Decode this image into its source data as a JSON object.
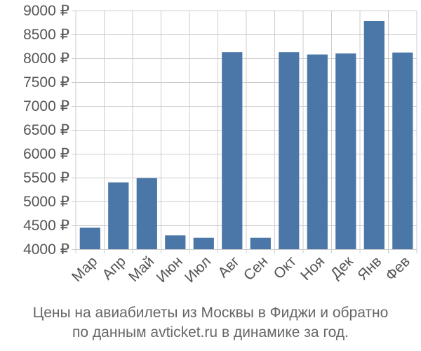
{
  "chart_data": {
    "type": "bar",
    "categories": [
      "Мар",
      "Апр",
      "Май",
      "Июн",
      "Июл",
      "Авг",
      "Сен",
      "Окт",
      "Ноя",
      "Дек",
      "Янв",
      "Фев"
    ],
    "values": [
      4450,
      5400,
      5490,
      4290,
      4240,
      8130,
      4240,
      8130,
      8080,
      8100,
      8780,
      8120
    ],
    "yticks": [
      "4000 ₽",
      "4500 ₽",
      "5000 ₽",
      "5500 ₽",
      "6000 ₽",
      "6500 ₽",
      "7000 ₽",
      "7500 ₽",
      "8000 ₽",
      "8500 ₽",
      "9000 ₽"
    ],
    "ytick_values": [
      4000,
      4500,
      5000,
      5500,
      6000,
      6500,
      7000,
      7500,
      8000,
      8500,
      9000
    ],
    "ylim": [
      4000,
      9000
    ],
    "grid": true,
    "bar_color": "#4a76a8",
    "grid_color": "#cccccc",
    "label_color": "#555555"
  },
  "caption": {
    "line1": "Цены на авиабилеты из Москвы в Фиджи и обратно",
    "line2": "по данным avticket.ru в динамике за год."
  }
}
